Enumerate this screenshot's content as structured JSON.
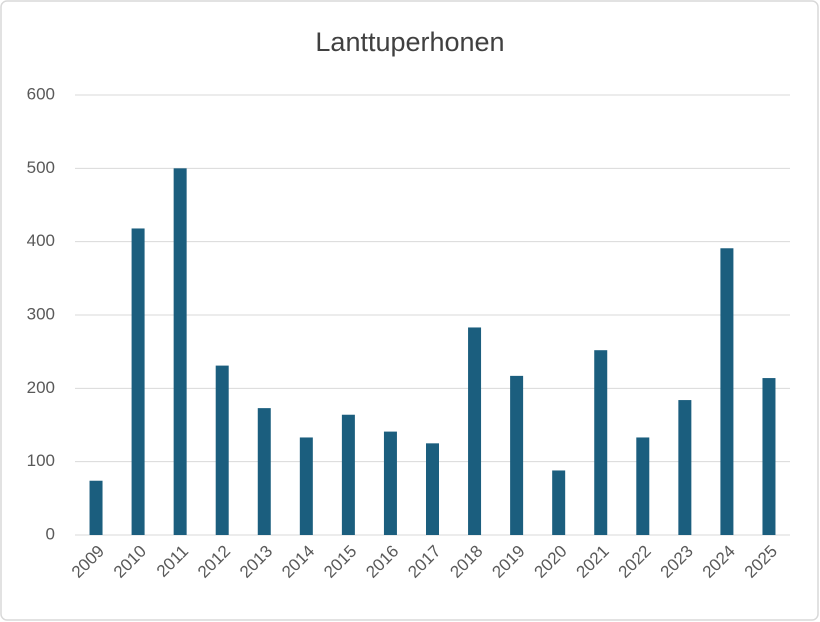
{
  "chart_data": {
    "type": "bar",
    "title": "Lanttuperhonen",
    "categories": [
      "2009",
      "2010",
      "2011",
      "2012",
      "2013",
      "2014",
      "2015",
      "2016",
      "2017",
      "2018",
      "2019",
      "2020",
      "2021",
      "2022",
      "2023",
      "2024",
      "2025"
    ],
    "values": [
      74,
      418,
      500,
      231,
      173,
      133,
      164,
      141,
      125,
      283,
      217,
      88,
      252,
      133,
      184,
      391,
      214
    ],
    "color": "#1b5e7e",
    "ylim": [
      0,
      600
    ],
    "yticks": [
      0,
      100,
      200,
      300,
      400,
      500,
      600
    ],
    "grid": true
  }
}
